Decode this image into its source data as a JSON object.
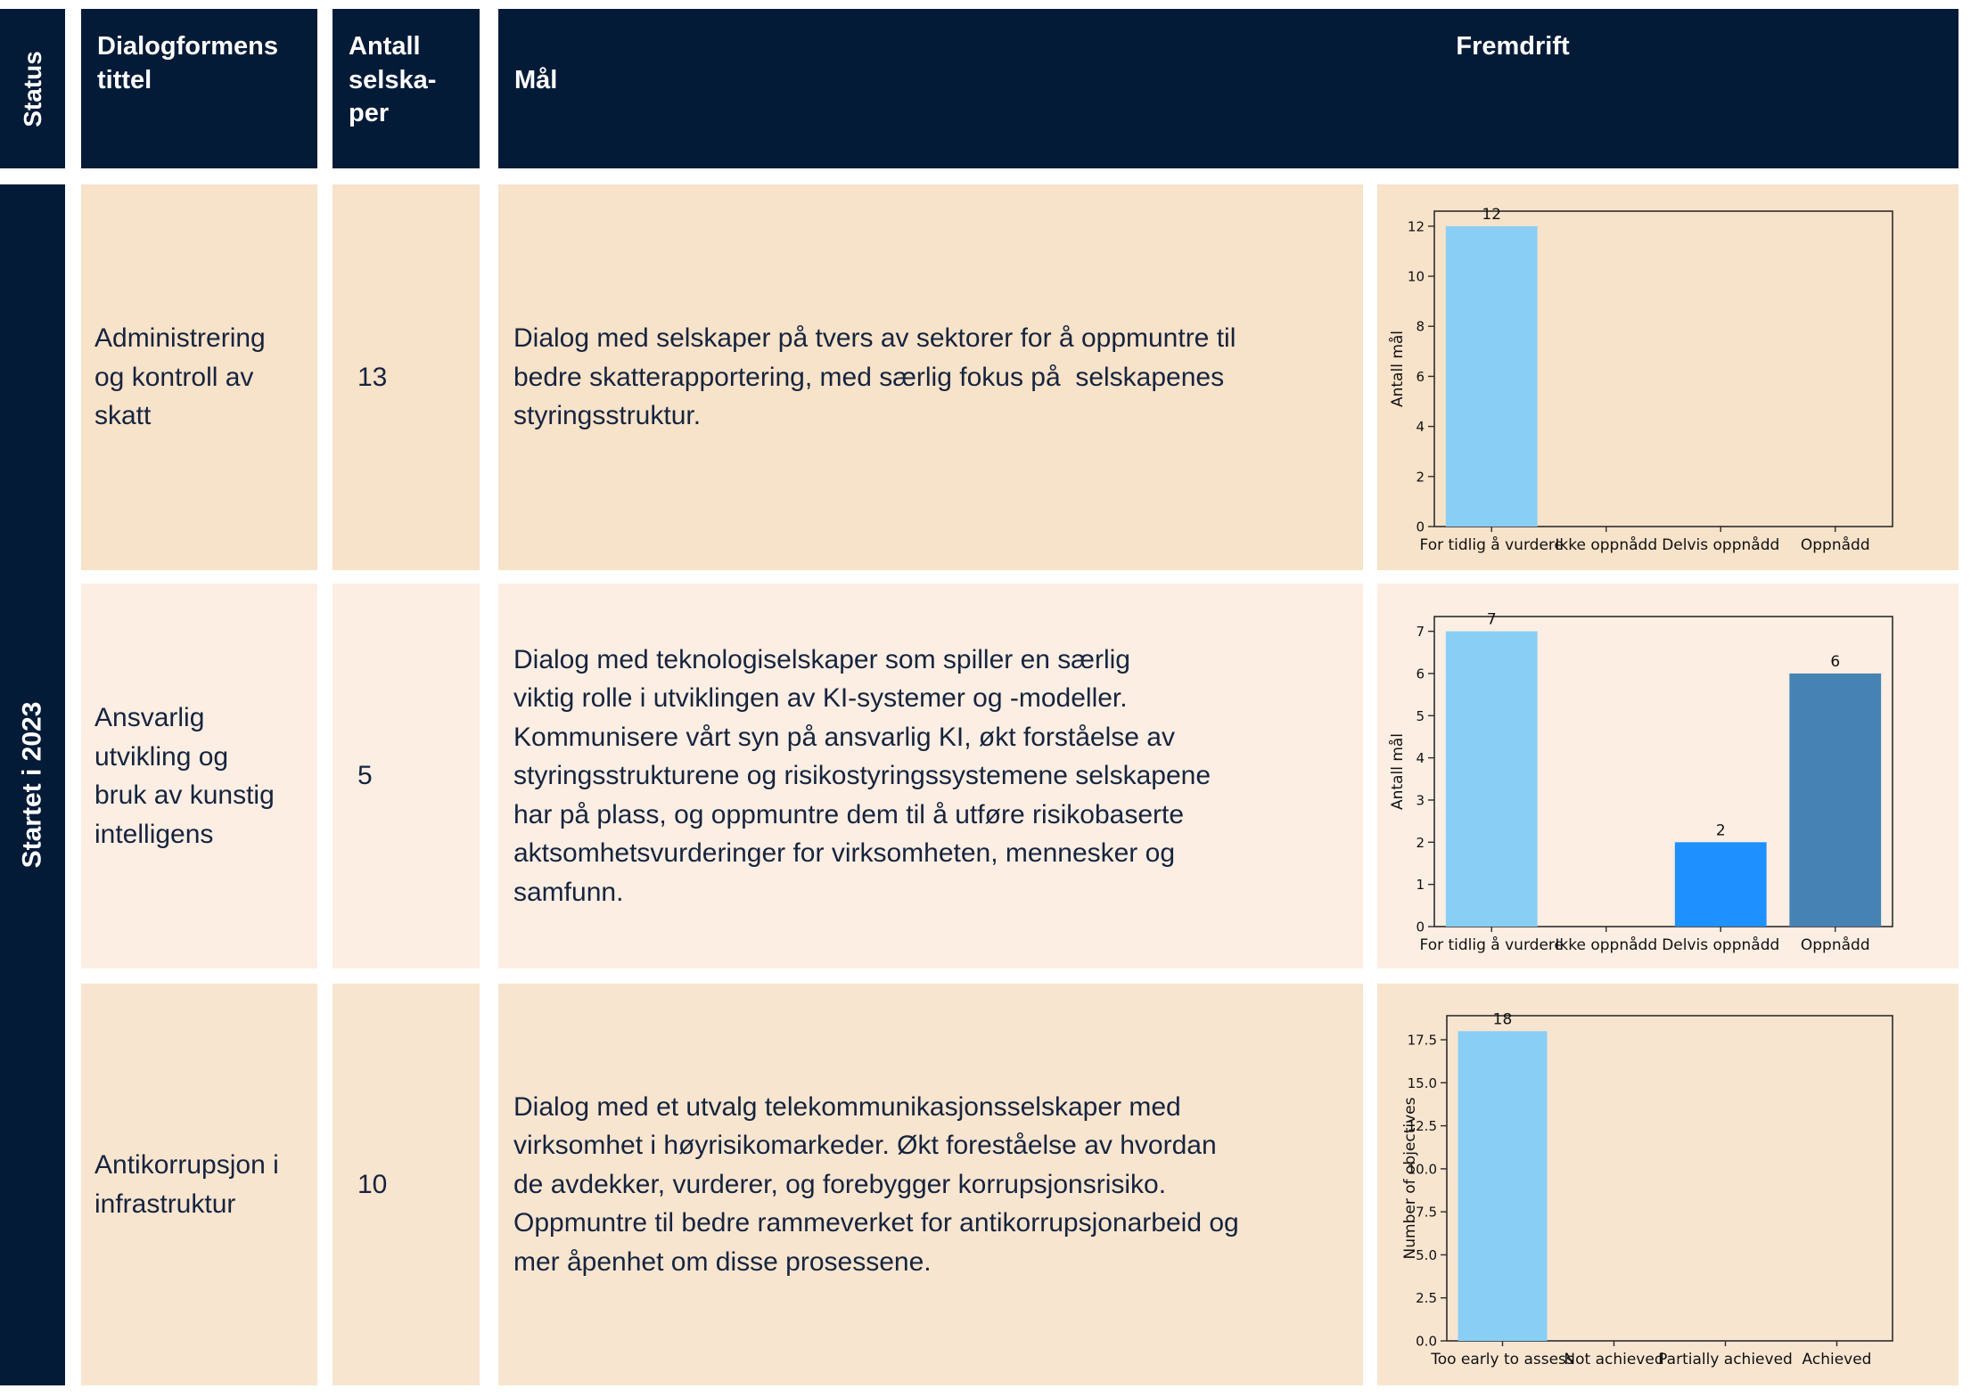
{
  "colors": {
    "header_navy": "#041b38",
    "text_navy": "#16243e",
    "row_bg": [
      "#f7e2ca",
      "#fceee3",
      "#f8e5d0"
    ],
    "chart_text": "#111111",
    "bar_light_blue": "#89cef5",
    "bar_dodger_blue": "#1e90ff",
    "bar_steel_blue": "#4682b4"
  },
  "header": {
    "status": "Status",
    "dialog_title": "Dialogformens\ntittel",
    "antall": "Antall\nselska-\nper",
    "maal": "Mål",
    "fremdrift": "Fremdrift"
  },
  "status_group_label": "Startet i 2023",
  "rows": [
    {
      "title": "Administrering\nog kontroll av\nskatt",
      "antall": "13",
      "maal": "Dialog med selskaper på tvers av sektorer for å oppmuntre til\nbedre skatterapportering, med særlig fokus på  selskapenes\nstyringsstruktur."
    },
    {
      "title": "Ansvarlig\nutvikling og\nbruk av kunstig\nintelligens",
      "antall": "5",
      "maal": "Dialog med teknologiselskaper som spiller en særlig\nviktig rolle i utviklingen av KI-systemer og -modeller.\nKommunisere vårt syn på ansvarlig KI, økt forståelse av\nstyringsstrukturene og risikostyringssystemene selskapene\nhar på plass, og oppmuntre dem til å utføre risikobaserte\naktsomhetsvurderinger for virksomheten, mennesker og\nsamfunn."
    },
    {
      "title": "Antikorrupsjon i\ninfrastruktur",
      "antall": "10",
      "maal": "Dialog med et utvalg telekommunikasjonsselskaper med\nvirksomhet i høyrisikomarkeder. Økt foreståelse av hvordan\nde avdekker, vurderer, og forebygger korrupsjonsrisiko.\nOppmuntre til bedre rammeverket for antikorrupsjonarbeid og\nmer åpenhet om disse prosessene."
    }
  ],
  "chart_data": [
    {
      "type": "bar",
      "title": "",
      "ylabel": "Antall  mål",
      "xlabel": "",
      "categories": [
        "For tidlig å vurdere",
        "Ikke oppnådd",
        "Delvis oppnådd",
        "Oppnådd"
      ],
      "values": [
        12,
        0,
        0,
        0
      ],
      "bar_colors": [
        "#89cef5",
        "#89cef5",
        "#1e90ff",
        "#4682b4"
      ],
      "yticks": [
        0,
        2,
        4,
        6,
        8,
        10,
        12
      ],
      "ytick_labels": [
        "0",
        "2",
        "4",
        "6",
        "8",
        "10",
        "12"
      ],
      "ylim": [
        0,
        12.6
      ],
      "grid": false,
      "legend": null
    },
    {
      "type": "bar",
      "title": "",
      "ylabel": "Antall  mål",
      "xlabel": "",
      "categories": [
        "For tidlig å vurdere",
        "Ikke oppnådd",
        "Delvis oppnådd",
        "Oppnådd"
      ],
      "values": [
        7,
        0,
        2,
        6
      ],
      "bar_colors": [
        "#89cef5",
        "#89cef5",
        "#1e90ff",
        "#4682b4"
      ],
      "yticks": [
        0,
        1,
        2,
        3,
        4,
        5,
        6,
        7
      ],
      "ytick_labels": [
        "0",
        "1",
        "2",
        "3",
        "4",
        "5",
        "6",
        "7"
      ],
      "ylim": [
        0,
        7.35
      ],
      "grid": false,
      "legend": null
    },
    {
      "type": "bar",
      "title": "",
      "ylabel": "Number of objectives",
      "xlabel": "",
      "categories": [
        "Too early to assess",
        "Not achieved",
        "Partially achieved",
        "Achieved"
      ],
      "values": [
        18,
        0,
        0,
        0
      ],
      "bar_colors": [
        "#89cef5",
        "#89cef5",
        "#1e90ff",
        "#4682b4"
      ],
      "yticks": [
        0,
        2.5,
        5,
        7.5,
        10,
        12.5,
        15,
        17.5
      ],
      "ytick_labels": [
        "0.0",
        "2.5",
        "5.0",
        "7.5",
        "10.0",
        "12.5",
        "15.0",
        "17.5"
      ],
      "ylim": [
        0,
        18.9
      ],
      "grid": false,
      "legend": null
    }
  ]
}
